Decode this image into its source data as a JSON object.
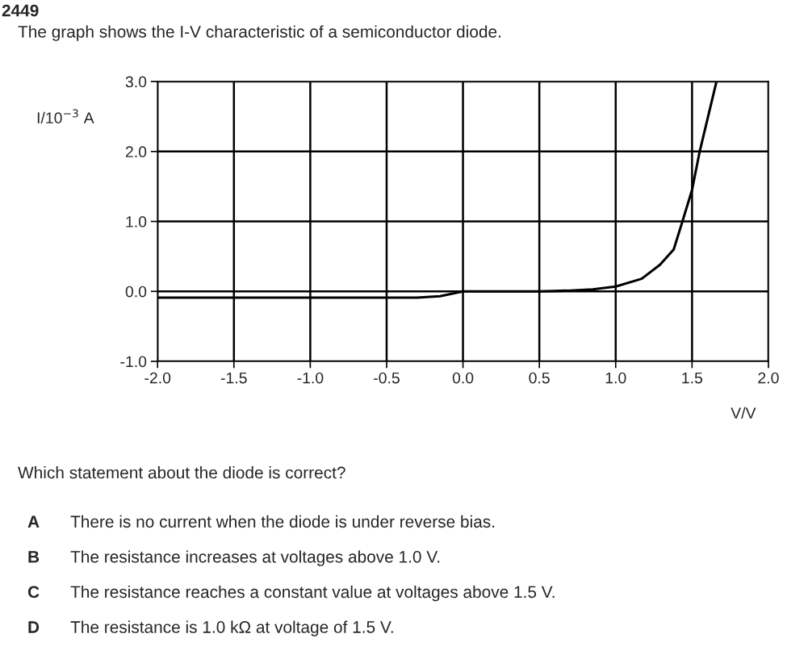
{
  "chart_data": {
    "type": "line",
    "title": "The graph shows the I-V characteristic of a semiconductor diode.",
    "xlabel": "V/V",
    "ylabel": "I/10$^{−3}$ A",
    "x": [
      -2.0,
      -0.3,
      -0.15,
      0.0,
      0.5,
      0.68,
      0.85,
      1.0,
      1.17,
      1.29,
      1.38,
      1.43,
      1.5,
      1.55,
      1.66
    ],
    "series": [
      {
        "color": "#000000",
        "values": [
          -0.09,
          -0.09,
          -0.07,
          0.0,
          0.0,
          0.01,
          0.03,
          0.07,
          0.18,
          0.38,
          0.6,
          0.95,
          1.45,
          2.0,
          3.0
        ]
      }
    ],
    "xlim": [
      -2.0,
      2.0
    ],
    "ylim": [
      -1.0,
      3.0
    ],
    "xticks": [
      {
        "value": -2.0,
        "label": "-2.0"
      },
      {
        "value": -1.5,
        "label": "-1.5"
      },
      {
        "value": -1.0,
        "label": "-1.0"
      },
      {
        "value": -0.5,
        "label": "-0.5"
      },
      {
        "value": 0.0,
        "label": "0.0"
      },
      {
        "value": 0.5,
        "label": "0.5"
      },
      {
        "value": 1.0,
        "label": "1.0"
      },
      {
        "value": 1.5,
        "label": "1.5"
      },
      {
        "value": 2.0,
        "label": "2.0"
      }
    ],
    "yticks": [
      {
        "value": -1.0,
        "label": "-1.0"
      },
      {
        "value": 0.0,
        "label": "0.0"
      },
      {
        "value": 1.0,
        "label": "1.0"
      },
      {
        "value": 2.0,
        "label": "2.0"
      },
      {
        "value": 3.0,
        "label": "3.0"
      }
    ],
    "grid": true,
    "legend": false,
    "marker": "none",
    "line_style": "solid",
    "annotations": [
      "2449",
      "Which statement about the diode is correct?",
      "A",
      "There is no current when the diode is under reverse bias.",
      "B",
      "The resistance increases at voltages above 1.0 V.",
      "C",
      "The resistance reaches a constant value at voltages above 1.5 V.",
      "D",
      "The resistance is 1.0 kΩ at voltage of 1.5 V."
    ]
  }
}
